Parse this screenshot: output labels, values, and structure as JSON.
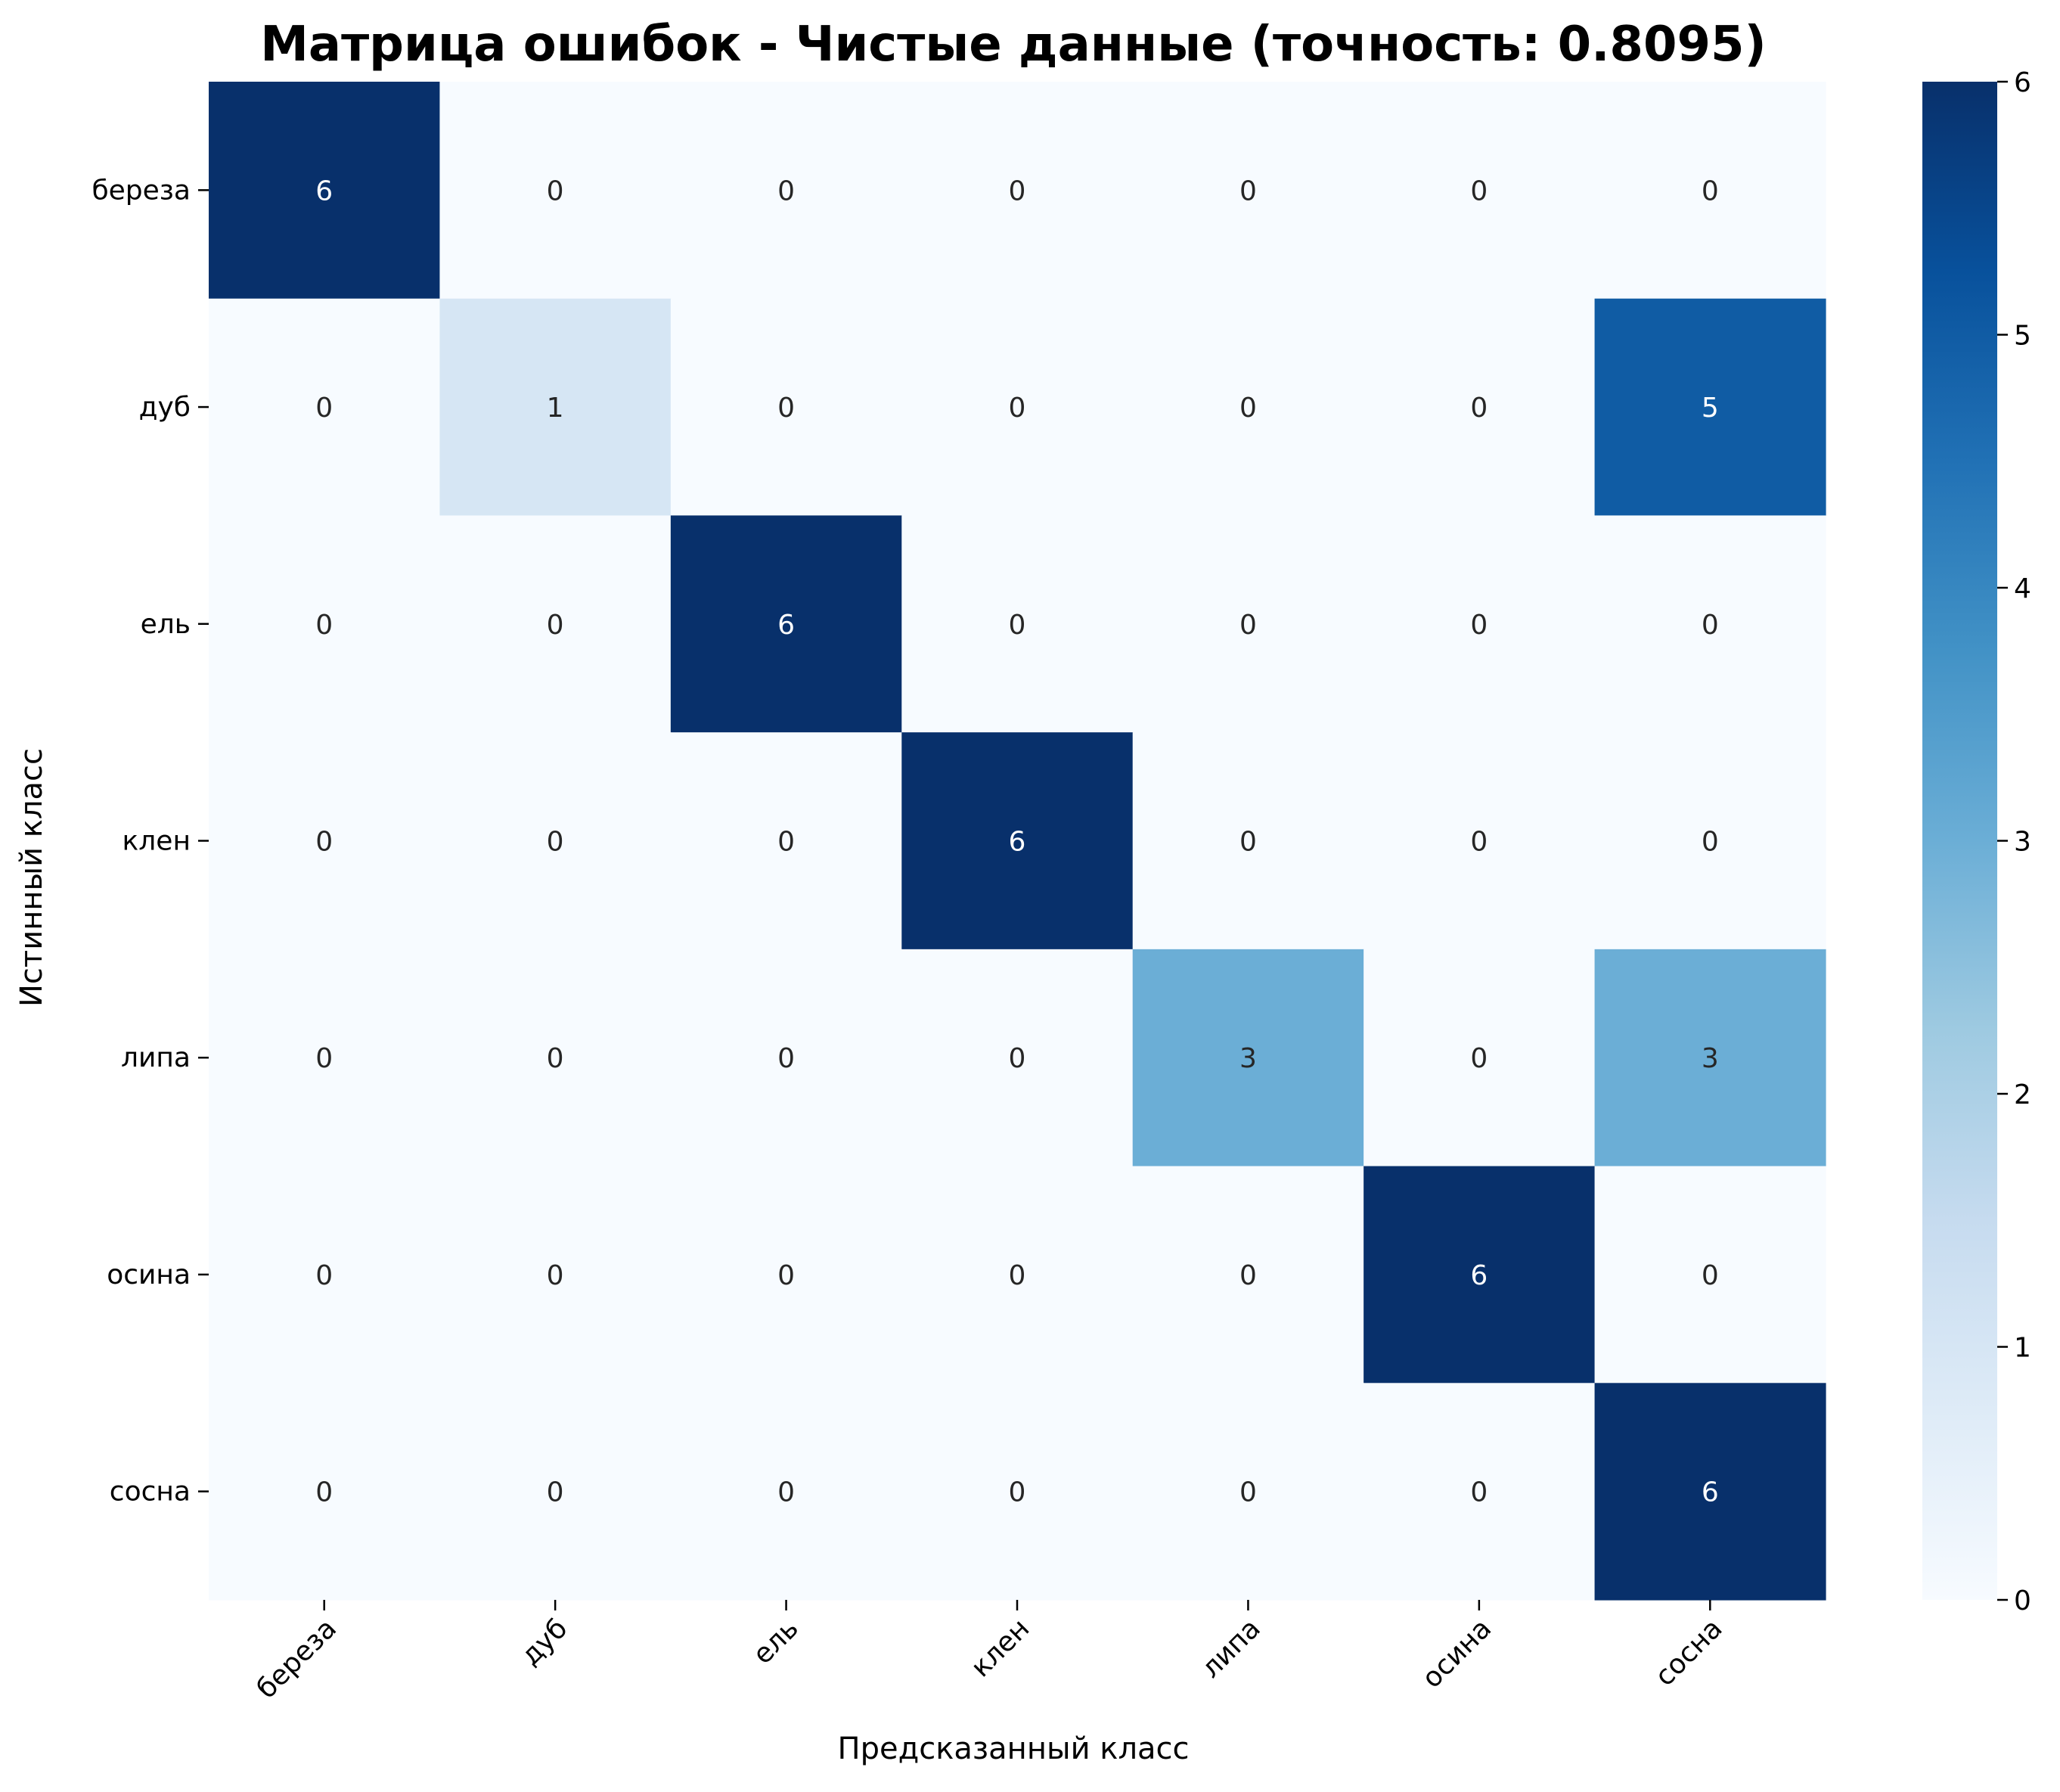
{
  "chart_data": {
    "type": "heatmap",
    "title": "Матрица ошибок - Чистые данные (точность: 0.8095)",
    "xlabel": "Предсказанный класс",
    "ylabel": "Истинный класс",
    "x_categories": [
      "береза",
      "дуб",
      "ель",
      "клен",
      "липа",
      "осина",
      "сосна"
    ],
    "y_categories": [
      "береза",
      "дуб",
      "ель",
      "клен",
      "липа",
      "осина",
      "сосна"
    ],
    "values": [
      [
        6,
        0,
        0,
        0,
        0,
        0,
        0
      ],
      [
        0,
        1,
        0,
        0,
        0,
        0,
        5
      ],
      [
        0,
        0,
        6,
        0,
        0,
        0,
        0
      ],
      [
        0,
        0,
        0,
        6,
        0,
        0,
        0
      ],
      [
        0,
        0,
        0,
        0,
        3,
        0,
        3
      ],
      [
        0,
        0,
        0,
        0,
        0,
        6,
        0
      ],
      [
        0,
        0,
        0,
        0,
        0,
        0,
        6
      ]
    ],
    "colormap": "Blues",
    "vmin": 0,
    "vmax": 6,
    "colorbar_ticks": [
      "0",
      "1",
      "2",
      "3",
      "4",
      "5",
      "6"
    ],
    "grid": false,
    "colorbar_placement": "right"
  }
}
